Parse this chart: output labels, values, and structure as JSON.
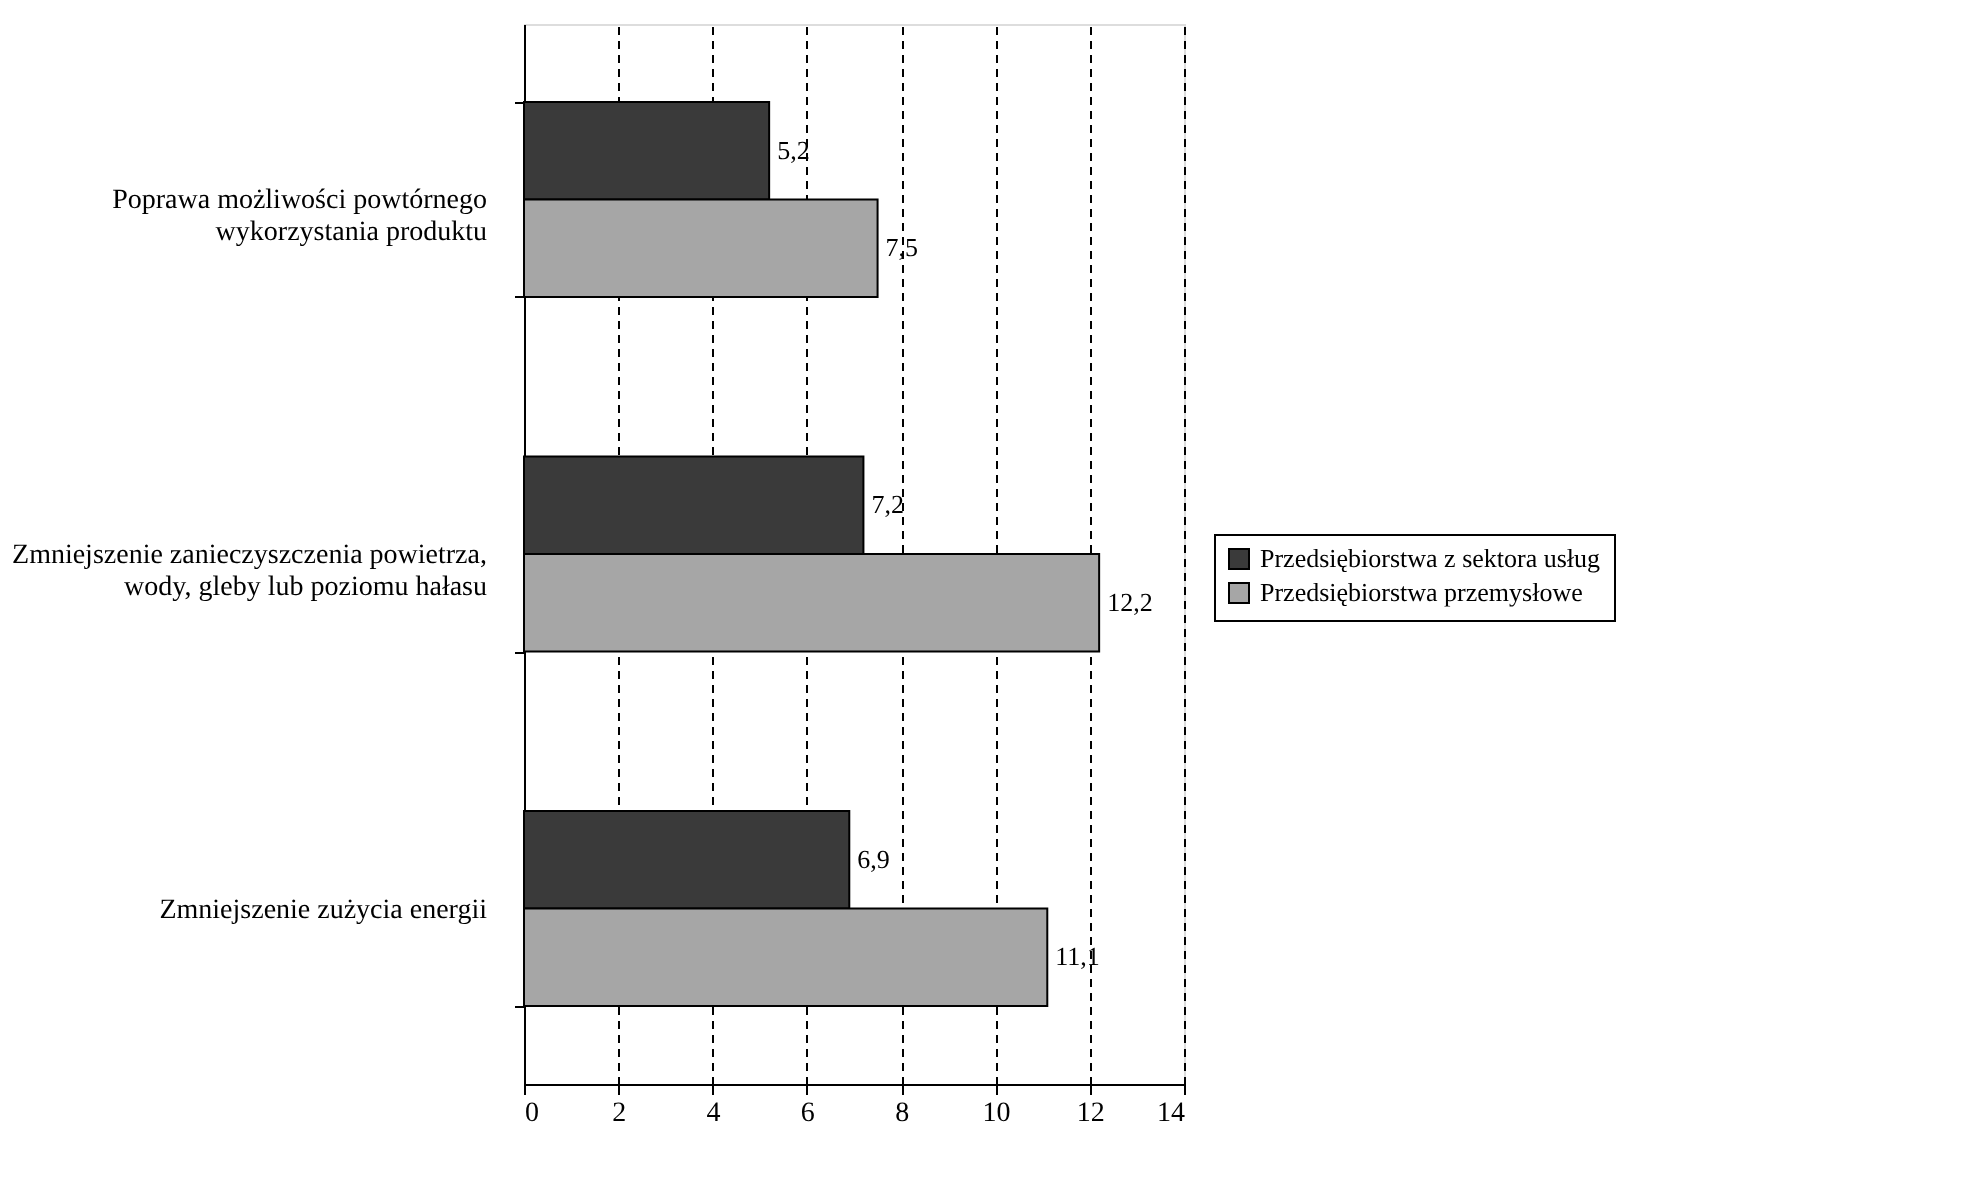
{
  "chart_data": {
    "type": "bar",
    "orientation": "horizontal",
    "categories": [
      "Poprawa możliwości powtórnego wykorzystania produktu",
      "Zmniejszenie zanieczyszczenia powietrza, wody, gleby lub poziomu hałasu",
      "Zmniejszenie zużycia energii"
    ],
    "series": [
      {
        "name": "Przedsiębiorstwa z sektora usług",
        "color": "#3a3a3a",
        "values": [
          5.2,
          7.2,
          6.9
        ],
        "value_labels": [
          "5,2",
          "7,2",
          "6,9"
        ]
      },
      {
        "name": "Przedsiębiorstwa przemysłowe",
        "color": "#a6a6a6",
        "values": [
          7.5,
          12.2,
          11.1
        ],
        "value_labels": [
          "7,5",
          "12,2",
          "11,1"
        ]
      }
    ],
    "xlim": [
      0,
      14
    ],
    "xticks": [
      0,
      2,
      4,
      6,
      8,
      10,
      12,
      14
    ],
    "grid": "x",
    "legend": "right"
  }
}
